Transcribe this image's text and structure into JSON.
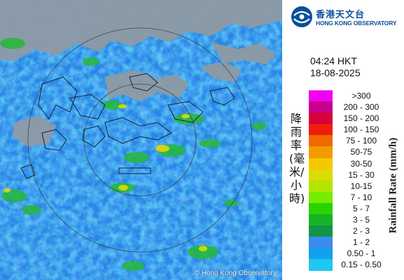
{
  "logo": {
    "name_zh": "香港天文台",
    "name_en": "HONG KONG OBSERVATORY"
  },
  "timestamp": {
    "time": "04:24 HKT",
    "date": "18-08-2025"
  },
  "map": {
    "copyright": "© Hong Kong Observatory"
  },
  "legend": {
    "title_zh": "降雨率(毫米/小時)",
    "title_en": "Rainfall Rate (mm/h)",
    "items": [
      {
        "label": ">300",
        "color": "#f000f0"
      },
      {
        "label": "200 - 300",
        "color": "#c8008c"
      },
      {
        "label": "150 - 200",
        "color": "#d8003a"
      },
      {
        "label": "100 - 150",
        "color": "#f01c0c"
      },
      {
        "label": "75 - 100",
        "color": "#f06a00"
      },
      {
        "label": "50-75",
        "color": "#f09c00"
      },
      {
        "label": "30-50",
        "color": "#f4c800"
      },
      {
        "label": "15 - 30",
        "color": "#dcdc00"
      },
      {
        "label": "10-15",
        "color": "#b4e400"
      },
      {
        "label": "7 - 10",
        "color": "#78ec00"
      },
      {
        "label": "5 - 7",
        "color": "#28d400"
      },
      {
        "label": "3 - 5",
        "color": "#18b428"
      },
      {
        "label": "2 - 3",
        "color": "#109644"
      },
      {
        "label": "1 - 2",
        "color": "#3c8cf0"
      },
      {
        "label": "0.50 - 1",
        "color": "#14a0ec"
      },
      {
        "label": "0.15 - 0.50",
        "color": "#1ec8f0"
      }
    ]
  }
}
